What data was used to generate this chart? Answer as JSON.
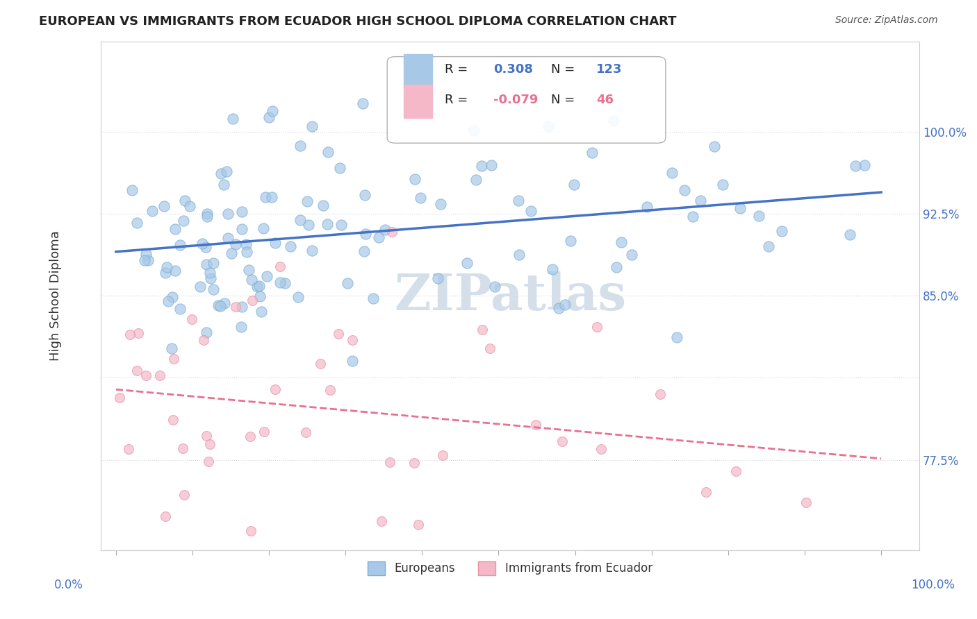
{
  "title": "EUROPEAN VS IMMIGRANTS FROM ECUADOR HIGH SCHOOL DIPLOMA CORRELATION CHART",
  "source": "Source: ZipAtlas.com",
  "ylabel": "High School Diploma",
  "blue_R": 0.308,
  "blue_N": 123,
  "pink_R": -0.079,
  "pink_N": 46,
  "blue_color": "#a8c8e8",
  "blue_edge": "#7aafd4",
  "pink_color": "#f4b8c8",
  "pink_edge": "#e890a8",
  "blue_line_color": "#4472c4",
  "pink_line_color": "#e87090",
  "watermark_color": "#d0dce8"
}
